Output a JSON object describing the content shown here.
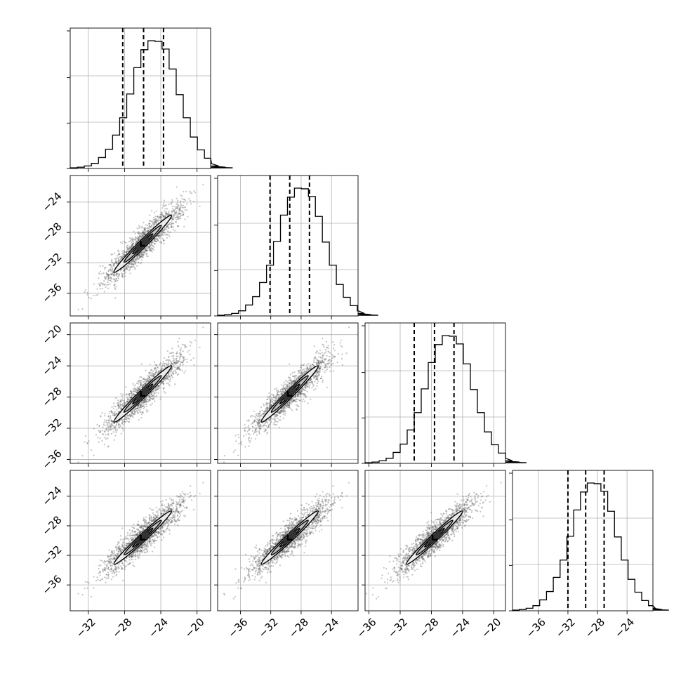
{
  "chart_data": {
    "type": "scatter",
    "subtype": "corner-plot",
    "title": "",
    "parameters": 4,
    "axis_labels": [
      "",
      "",
      "",
      ""
    ],
    "grid": true,
    "ranges": [
      [
        -34,
        -18.5
      ],
      [
        -39,
        -20.5
      ],
      [
        -36.5,
        -18.5
      ],
      [
        -39.5,
        -20.5
      ]
    ],
    "ticks": [
      [
        "−32",
        "−28",
        "−24",
        "−20"
      ],
      [
        "−36",
        "−32",
        "−28",
        "−24"
      ],
      [
        "−36",
        "−32",
        "−28",
        "−24",
        "−20"
      ],
      [
        "−36",
        "−32",
        "−28",
        "−24"
      ]
    ],
    "tick_values": [
      [
        -32,
        -28,
        -24,
        -20
      ],
      [
        -36,
        -32,
        -28,
        -24
      ],
      [
        -36,
        -32,
        -28,
        -24,
        -20
      ],
      [
        -36,
        -32,
        -28,
        -24
      ]
    ],
    "row_ticks": [
      [],
      [
        "−24",
        "−28",
        "−32",
        "−36"
      ],
      [
        "−20",
        "−24",
        "−28",
        "−32",
        "−36"
      ],
      [
        "−24",
        "−28",
        "−32",
        "−36"
      ]
    ],
    "row_tick_values": [
      [],
      [
        -24,
        -28,
        -32,
        -36
      ],
      [
        -20,
        -24,
        -28,
        -32,
        -36
      ],
      [
        -24,
        -28,
        -32,
        -36
      ]
    ],
    "quantiles": [
      [
        -28.2,
        -25.9,
        -23.7
      ],
      [
        -32.1,
        -29.5,
        -26.9
      ],
      [
        -30.2,
        -27.6,
        -25.1
      ],
      [
        -32.0,
        -29.6,
        -27.1
      ]
    ],
    "histograms": [
      {
        "param": 1,
        "bin_start": -34.0,
        "bin_width": 0.78,
        "counts": [
          1,
          2,
          4,
          8,
          17,
          30,
          52,
          79,
          116,
          157,
          185,
          199,
          198,
          186,
          155,
          115,
          79,
          49,
          29,
          16,
          8,
          4,
          2,
          1
        ]
      },
      {
        "param": 2,
        "bin_start": -39.0,
        "bin_width": 0.92,
        "counts": [
          1,
          2,
          4,
          8,
          17,
          30,
          52,
          79,
          116,
          157,
          185,
          199,
          198,
          186,
          155,
          115,
          79,
          49,
          29,
          16,
          8,
          4,
          2,
          1
        ]
      },
      {
        "param": 3,
        "bin_start": -36.5,
        "bin_width": 0.9,
        "counts": [
          1,
          2,
          4,
          8,
          17,
          30,
          52,
          79,
          116,
          157,
          185,
          199,
          198,
          186,
          155,
          115,
          79,
          49,
          29,
          16,
          8,
          4,
          2,
          1
        ]
      },
      {
        "param": 4,
        "bin_start": -39.5,
        "bin_width": 0.92,
        "counts": [
          1,
          2,
          4,
          8,
          17,
          30,
          52,
          79,
          116,
          157,
          185,
          199,
          198,
          186,
          155,
          115,
          79,
          49,
          29,
          16,
          8,
          4,
          2,
          1
        ]
      }
    ],
    "means": [
      -26.0,
      -29.5,
      -27.6,
      -29.6
    ],
    "sigmas": [
      2.2,
      2.6,
      2.5,
      2.5
    ],
    "correlation": 0.96
  }
}
